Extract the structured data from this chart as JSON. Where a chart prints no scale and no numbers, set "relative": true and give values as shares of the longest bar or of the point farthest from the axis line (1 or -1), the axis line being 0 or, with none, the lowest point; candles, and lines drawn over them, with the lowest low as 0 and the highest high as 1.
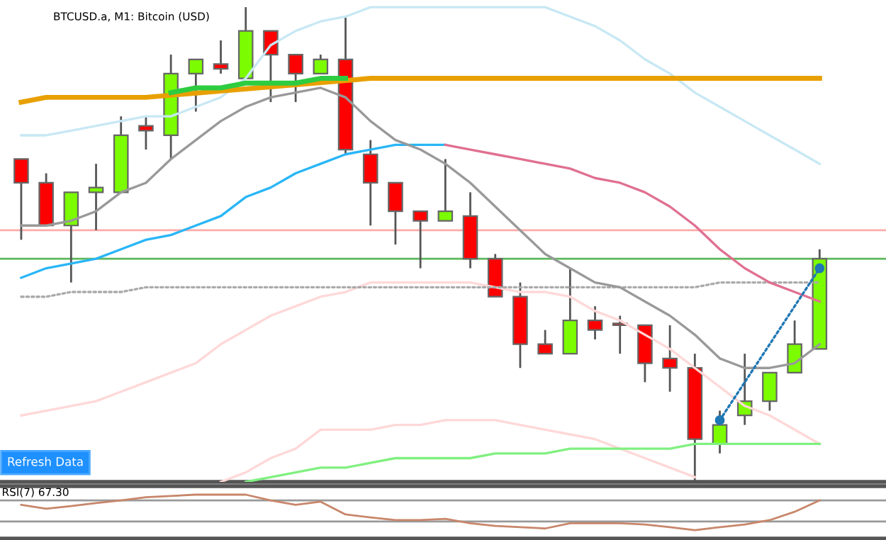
{
  "chart_data": [
    {
      "type": "candlestick",
      "title": "BTCUSD.a, M1: Bitcoin (USD)",
      "relative": true,
      "annotations": [
        "Refresh Data"
      ],
      "categories": [
        null,
        null,
        null,
        null,
        null,
        null,
        null,
        null,
        null,
        null,
        null,
        null,
        null,
        null,
        null,
        null,
        null,
        null,
        null,
        null,
        null,
        null,
        null,
        null,
        null,
        null,
        null,
        null,
        null,
        null,
        null,
        null,
        null
      ],
      "ohlc": [
        [
          0.68,
          0.68,
          0.51,
          0.63
        ],
        [
          0.63,
          0.65,
          0.54,
          0.54
        ],
        [
          0.54,
          0.61,
          0.42,
          0.61
        ],
        [
          0.61,
          0.67,
          0.53,
          0.62
        ],
        [
          0.61,
          0.77,
          0.61,
          0.73
        ],
        [
          0.75,
          0.77,
          0.7,
          0.74
        ],
        [
          0.73,
          0.9,
          0.68,
          0.86
        ],
        [
          0.86,
          0.89,
          0.78,
          0.89
        ],
        [
          0.88,
          0.93,
          0.86,
          0.87
        ],
        [
          0.85,
          1.0,
          0.85,
          0.95
        ],
        [
          0.95,
          0.95,
          0.8,
          0.9
        ],
        [
          0.9,
          0.9,
          0.8,
          0.86
        ],
        [
          0.86,
          0.9,
          0.86,
          0.89
        ],
        [
          0.89,
          0.98,
          0.69,
          0.7
        ],
        [
          0.69,
          0.72,
          0.54,
          0.63
        ],
        [
          0.63,
          0.63,
          0.5,
          0.57
        ],
        [
          0.57,
          0.57,
          0.45,
          0.55
        ],
        [
          0.55,
          0.68,
          0.55,
          0.57
        ],
        [
          0.56,
          0.61,
          0.45,
          0.47
        ],
        [
          0.47,
          0.48,
          0.39,
          0.39
        ],
        [
          0.39,
          0.42,
          0.24,
          0.29
        ],
        [
          0.29,
          0.32,
          0.27,
          0.27
        ],
        [
          0.27,
          0.45,
          0.27,
          0.34
        ],
        [
          0.34,
          0.37,
          0.3,
          0.32
        ],
        [
          0.33,
          0.35,
          0.27,
          0.33
        ],
        [
          0.33,
          0.33,
          0.21,
          0.25
        ],
        [
          0.26,
          0.33,
          0.19,
          0.24
        ],
        [
          0.24,
          0.27,
          0.0,
          0.09
        ],
        [
          0.08,
          0.15,
          0.06,
          0.12
        ],
        [
          0.14,
          0.27,
          0.12,
          0.17
        ],
        [
          0.17,
          0.23,
          0.15,
          0.23
        ],
        [
          0.23,
          0.34,
          0.23,
          0.29
        ],
        [
          0.28,
          0.49,
          0.28,
          0.47
        ]
      ],
      "colors": [
        "#ff0000",
        "#ff0000",
        "#7cfc00",
        "#7cfc00",
        "#7cfc00",
        "#ff0000",
        "#7cfc00",
        "#7cfc00",
        "#ff0000",
        "#7cfc00",
        "#ff0000",
        "#ff0000",
        "#7cfc00",
        "#ff0000",
        "#ff0000",
        "#ff0000",
        "#ff0000",
        "#7cfc00",
        "#ff0000",
        "#ff0000",
        "#ff0000",
        "#ff0000",
        "#7cfc00",
        "#ff0000",
        "#ff0000",
        "#ff0000",
        "#ff0000",
        "#ff0000",
        "#7cfc00",
        "#7cfc00",
        "#7cfc00",
        "#7cfc00",
        "#7cfc00"
      ],
      "ref_lines": [
        {
          "axis": "y",
          "value": 0.53,
          "color": "#ffaaaa"
        },
        {
          "axis": "y",
          "value": 0.47,
          "color": "#5cb85c"
        }
      ],
      "series": [
        {
          "type": "line",
          "color": "#c8e8f4",
          "values": [
            0.73,
            0.73,
            0.74,
            0.75,
            0.76,
            0.77,
            0.77,
            0.79,
            0.81,
            0.85,
            0.92,
            0.95,
            0.97,
            0.98,
            1.0,
            1.0,
            1.0,
            1.0,
            1.0,
            1.0,
            1.0,
            1.0,
            0.98,
            0.96,
            0.93,
            0.89,
            0.86,
            0.82,
            0.79,
            0.76,
            0.73,
            0.7,
            0.67
          ]
        },
        {
          "type": "line",
          "color": "#ffd8d8",
          "values": [
            0.14,
            0.15,
            0.16,
            0.17,
            0.19,
            0.21,
            0.23,
            0.25,
            0.29,
            0.32,
            0.35,
            0.37,
            0.39,
            0.4,
            0.42,
            0.42,
            0.42,
            0.42,
            0.42,
            0.41,
            0.4,
            0.4,
            0.39,
            0.36,
            0.34,
            0.31,
            0.28,
            0.24,
            0.2,
            0.16,
            0.14,
            0.11,
            0.08
          ]
        },
        {
          "type": "line",
          "color": "#ffd8d8",
          "values": [
            null,
            null,
            null,
            null,
            null,
            null,
            null,
            null,
            0.0,
            0.02,
            0.05,
            0.07,
            0.11,
            0.11,
            0.11,
            0.12,
            0.12,
            0.13,
            0.13,
            0.13,
            0.12,
            0.11,
            0.1,
            0.09,
            0.07,
            0.05,
            0.03,
            0.01,
            null,
            null,
            null,
            null,
            null
          ]
        },
        {
          "type": "line",
          "color": "#80f080",
          "values": [
            null,
            null,
            null,
            null,
            null,
            null,
            null,
            null,
            null,
            0.0,
            0.01,
            0.02,
            0.03,
            0.03,
            0.04,
            0.05,
            0.05,
            0.05,
            0.05,
            0.06,
            0.06,
            0.06,
            0.07,
            0.07,
            0.07,
            0.07,
            0.07,
            0.08,
            0.08,
            0.08,
            0.08,
            0.08,
            0.08
          ]
        },
        {
          "type": "line",
          "color": "#aaaaaa",
          "line_style": "dotted",
          "values": [
            0.39,
            0.39,
            0.4,
            0.4,
            0.4,
            0.41,
            0.41,
            0.41,
            0.41,
            0.41,
            0.41,
            0.41,
            0.41,
            0.41,
            0.41,
            0.41,
            0.41,
            0.41,
            0.41,
            0.41,
            0.41,
            0.41,
            0.41,
            0.41,
            0.41,
            0.41,
            0.41,
            0.41,
            0.42,
            0.42,
            0.42,
            0.42,
            0.42
          ]
        },
        {
          "type": "line",
          "color": "#29b6f6",
          "values": [
            0.43,
            0.45,
            0.46,
            0.47,
            0.49,
            0.51,
            0.52,
            0.54,
            0.56,
            0.6,
            0.62,
            0.65,
            0.67,
            0.69,
            0.7,
            0.71,
            0.71,
            0.71,
            null,
            null,
            null,
            null,
            null,
            null,
            null,
            null,
            null,
            null,
            null,
            null,
            null,
            null,
            null
          ]
        },
        {
          "type": "line",
          "color": "#e07090",
          "values": [
            null,
            null,
            null,
            null,
            null,
            null,
            null,
            null,
            null,
            null,
            null,
            null,
            null,
            null,
            null,
            null,
            null,
            0.71,
            0.7,
            0.69,
            0.68,
            0.67,
            0.66,
            0.64,
            0.63,
            0.61,
            0.58,
            0.54,
            0.49,
            0.45,
            0.42,
            0.4,
            0.38
          ]
        },
        {
          "type": "line",
          "color": "#e8a000",
          "values": [
            0.8,
            0.81,
            0.81,
            0.81,
            0.81,
            0.81,
            null,
            null,
            null,
            null,
            null,
            null,
            null,
            null,
            0.85,
            0.85,
            0.85,
            0.85,
            0.85,
            0.85,
            0.85,
            0.85,
            0.85,
            0.85,
            0.85,
            0.85,
            0.85,
            0.85,
            0.85,
            0.85,
            0.85,
            0.85,
            0.85
          ]
        },
        {
          "type": "line",
          "color": "#2ecc40",
          "values": [
            null,
            null,
            null,
            null,
            null,
            null,
            0.82,
            0.83,
            0.83,
            0.84,
            0.84,
            0.84,
            0.85,
            0.85,
            null,
            null,
            null,
            null,
            null,
            null,
            null,
            null,
            null,
            null,
            null,
            null,
            null,
            null,
            null,
            null,
            null,
            null,
            null
          ]
        },
        {
          "type": "line",
          "color": "#999999",
          "values": [
            0.54,
            0.54,
            0.55,
            0.57,
            0.61,
            0.63,
            0.68,
            0.72,
            0.76,
            0.79,
            0.81,
            0.82,
            0.83,
            0.81,
            0.76,
            0.72,
            0.7,
            0.67,
            0.63,
            0.58,
            0.53,
            0.48,
            0.45,
            0.42,
            0.41,
            0.38,
            0.35,
            0.31,
            0.26,
            0.24,
            0.24,
            0.25,
            0.29
          ]
        },
        {
          "type": "line",
          "color": "#1f77b4",
          "line_style": "dotted",
          "marker": "circle",
          "values": [
            null,
            null,
            null,
            null,
            null,
            null,
            null,
            null,
            null,
            null,
            null,
            null,
            null,
            null,
            null,
            null,
            null,
            null,
            null,
            null,
            null,
            null,
            null,
            null,
            null,
            null,
            null,
            null,
            0.13,
            null,
            null,
            null,
            0.45
          ]
        }
      ]
    },
    {
      "type": "line",
      "title": "RSI(7) 67.30",
      "relative": true,
      "categories": [
        null,
        null,
        null,
        null,
        null,
        null,
        null,
        null,
        null,
        null,
        null,
        null,
        null,
        null,
        null,
        null,
        null,
        null,
        null,
        null,
        null,
        null,
        null,
        null,
        null,
        null,
        null,
        null,
        null,
        null,
        null,
        null,
        null
      ],
      "ref_lines": [
        {
          "axis": "y",
          "value": 0.87,
          "color": "#999999"
        },
        {
          "axis": "y",
          "value": 0.39,
          "color": "#999999"
        }
      ],
      "series": [
        {
          "type": "line",
          "color": "#c8866a",
          "values": [
            0.77,
            0.68,
            0.74,
            0.81,
            0.87,
            0.94,
            0.97,
            1.0,
            1.0,
            1.0,
            0.87,
            0.77,
            0.84,
            0.55,
            0.48,
            0.42,
            0.42,
            0.45,
            0.35,
            0.29,
            0.26,
            0.23,
            0.35,
            0.35,
            0.35,
            0.32,
            0.26,
            0.19,
            0.26,
            0.32,
            0.42,
            0.61,
            0.87
          ]
        }
      ]
    }
  ]
}
